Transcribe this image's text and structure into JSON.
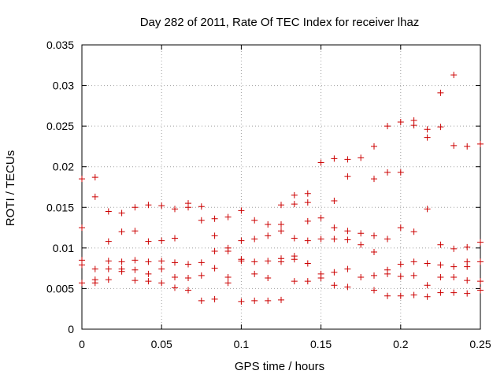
{
  "chart_data": {
    "type": "scatter",
    "title": "Day 282 of 2011, Rate Of TEC Index for receiver lhaz",
    "xlabel": "GPS time / hours",
    "ylabel": "ROTI / TECUs",
    "xlim": [
      0,
      0.25
    ],
    "ylim": [
      0,
      0.035
    ],
    "xticks": [
      "0",
      "0.05",
      "0.1",
      "0.15",
      "0.2",
      "0.25"
    ],
    "yticks": [
      "0",
      "0.005",
      "0.01",
      "0.015",
      "0.02",
      "0.025",
      "0.03",
      "0.035"
    ],
    "grid": true,
    "marker": "+",
    "marker_color": "#cc0000",
    "series": [
      {
        "name": "ROTI",
        "points": [
          [
            0.0,
            0.0185
          ],
          [
            0.0,
            0.0125
          ],
          [
            0.0,
            0.0085
          ],
          [
            0.0,
            0.0079
          ],
          [
            0.0,
            0.0057
          ],
          [
            0.0083,
            0.0187
          ],
          [
            0.0083,
            0.0163
          ],
          [
            0.0083,
            0.0074
          ],
          [
            0.0083,
            0.0061
          ],
          [
            0.0083,
            0.0057
          ],
          [
            0.0167,
            0.0145
          ],
          [
            0.0167,
            0.0108
          ],
          [
            0.0167,
            0.0084
          ],
          [
            0.0167,
            0.0074
          ],
          [
            0.0167,
            0.0061
          ],
          [
            0.025,
            0.0143
          ],
          [
            0.025,
            0.012
          ],
          [
            0.025,
            0.0083
          ],
          [
            0.025,
            0.0074
          ],
          [
            0.025,
            0.0071
          ],
          [
            0.0333,
            0.015
          ],
          [
            0.0333,
            0.0121
          ],
          [
            0.0333,
            0.0085
          ],
          [
            0.0333,
            0.0073
          ],
          [
            0.0333,
            0.006
          ],
          [
            0.0417,
            0.0153
          ],
          [
            0.0417,
            0.0108
          ],
          [
            0.0417,
            0.0083
          ],
          [
            0.0417,
            0.0068
          ],
          [
            0.0417,
            0.0059
          ],
          [
            0.05,
            0.0152
          ],
          [
            0.05,
            0.0109
          ],
          [
            0.05,
            0.0084
          ],
          [
            0.05,
            0.0074
          ],
          [
            0.05,
            0.0057
          ],
          [
            0.0583,
            0.0148
          ],
          [
            0.0583,
            0.0112
          ],
          [
            0.0583,
            0.0082
          ],
          [
            0.0583,
            0.0064
          ],
          [
            0.0583,
            0.0051
          ],
          [
            0.0667,
            0.0155
          ],
          [
            0.0667,
            0.015
          ],
          [
            0.0667,
            0.008
          ],
          [
            0.0667,
            0.0063
          ],
          [
            0.0667,
            0.0048
          ],
          [
            0.075,
            0.0151
          ],
          [
            0.075,
            0.0134
          ],
          [
            0.075,
            0.0082
          ],
          [
            0.075,
            0.0066
          ],
          [
            0.075,
            0.0035
          ],
          [
            0.0833,
            0.0136
          ],
          [
            0.0833,
            0.0115
          ],
          [
            0.0833,
            0.0096
          ],
          [
            0.0833,
            0.0075
          ],
          [
            0.0833,
            0.0037
          ],
          [
            0.0917,
            0.0138
          ],
          [
            0.0917,
            0.01
          ],
          [
            0.0917,
            0.0096
          ],
          [
            0.0917,
            0.0064
          ],
          [
            0.0917,
            0.0057
          ],
          [
            0.1,
            0.0146
          ],
          [
            0.1,
            0.0109
          ],
          [
            0.1,
            0.0086
          ],
          [
            0.1,
            0.0084
          ],
          [
            0.1,
            0.0034
          ],
          [
            0.1083,
            0.0134
          ],
          [
            0.1083,
            0.0111
          ],
          [
            0.1083,
            0.0083
          ],
          [
            0.1083,
            0.0068
          ],
          [
            0.1083,
            0.0035
          ],
          [
            0.1167,
            0.0129
          ],
          [
            0.1167,
            0.0115
          ],
          [
            0.1167,
            0.0084
          ],
          [
            0.1167,
            0.0063
          ],
          [
            0.1167,
            0.0035
          ],
          [
            0.125,
            0.0153
          ],
          [
            0.125,
            0.0129
          ],
          [
            0.125,
            0.0121
          ],
          [
            0.125,
            0.0087
          ],
          [
            0.125,
            0.0083
          ],
          [
            0.125,
            0.0036
          ],
          [
            0.1333,
            0.0165
          ],
          [
            0.1333,
            0.0154
          ],
          [
            0.1333,
            0.0112
          ],
          [
            0.1333,
            0.009
          ],
          [
            0.1333,
            0.0086
          ],
          [
            0.1333,
            0.0059
          ],
          [
            0.1417,
            0.0167
          ],
          [
            0.1417,
            0.0156
          ],
          [
            0.1417,
            0.0133
          ],
          [
            0.1417,
            0.0109
          ],
          [
            0.1417,
            0.0081
          ],
          [
            0.1417,
            0.0059
          ],
          [
            0.15,
            0.0205
          ],
          [
            0.15,
            0.0137
          ],
          [
            0.15,
            0.0111
          ],
          [
            0.15,
            0.0068
          ],
          [
            0.15,
            0.0063
          ],
          [
            0.1583,
            0.021
          ],
          [
            0.1583,
            0.0158
          ],
          [
            0.1583,
            0.0125
          ],
          [
            0.1583,
            0.0111
          ],
          [
            0.1583,
            0.007
          ],
          [
            0.1583,
            0.0054
          ],
          [
            0.1667,
            0.0209
          ],
          [
            0.1667,
            0.0188
          ],
          [
            0.1667,
            0.0121
          ],
          [
            0.1667,
            0.011
          ],
          [
            0.1667,
            0.0074
          ],
          [
            0.1667,
            0.0052
          ],
          [
            0.175,
            0.0211
          ],
          [
            0.175,
            0.0118
          ],
          [
            0.175,
            0.0104
          ],
          [
            0.175,
            0.0064
          ],
          [
            0.1833,
            0.0225
          ],
          [
            0.1833,
            0.0185
          ],
          [
            0.1833,
            0.0115
          ],
          [
            0.1833,
            0.0095
          ],
          [
            0.1833,
            0.0066
          ],
          [
            0.1833,
            0.0048
          ],
          [
            0.1917,
            0.025
          ],
          [
            0.1917,
            0.0193
          ],
          [
            0.1917,
            0.0111
          ],
          [
            0.1917,
            0.0073
          ],
          [
            0.1917,
            0.0068
          ],
          [
            0.1917,
            0.0041
          ],
          [
            0.2,
            0.0255
          ],
          [
            0.2,
            0.0193
          ],
          [
            0.2,
            0.0125
          ],
          [
            0.2,
            0.008
          ],
          [
            0.2,
            0.0065
          ],
          [
            0.2,
            0.0041
          ],
          [
            0.2083,
            0.0257
          ],
          [
            0.2083,
            0.0251
          ],
          [
            0.2083,
            0.012
          ],
          [
            0.2083,
            0.0083
          ],
          [
            0.2083,
            0.0066
          ],
          [
            0.2083,
            0.0042
          ],
          [
            0.2167,
            0.0246
          ],
          [
            0.2167,
            0.0236
          ],
          [
            0.2167,
            0.0148
          ],
          [
            0.2167,
            0.0081
          ],
          [
            0.2167,
            0.0054
          ],
          [
            0.2167,
            0.004
          ],
          [
            0.225,
            0.0291
          ],
          [
            0.225,
            0.0249
          ],
          [
            0.225,
            0.0104
          ],
          [
            0.225,
            0.0079
          ],
          [
            0.225,
            0.0064
          ],
          [
            0.225,
            0.0045
          ],
          [
            0.2333,
            0.0313
          ],
          [
            0.2333,
            0.0226
          ],
          [
            0.2333,
            0.0099
          ],
          [
            0.2333,
            0.0077
          ],
          [
            0.2333,
            0.0064
          ],
          [
            0.2333,
            0.0045
          ],
          [
            0.2417,
            0.0225
          ],
          [
            0.2417,
            0.0101
          ],
          [
            0.2417,
            0.0083
          ],
          [
            0.2417,
            0.0077
          ],
          [
            0.2417,
            0.006
          ],
          [
            0.2417,
            0.0044
          ],
          [
            0.25,
            0.0228
          ],
          [
            0.25,
            0.0107
          ],
          [
            0.25,
            0.0083
          ],
          [
            0.25,
            0.0059
          ],
          [
            0.25,
            0.0048
          ]
        ]
      }
    ]
  }
}
